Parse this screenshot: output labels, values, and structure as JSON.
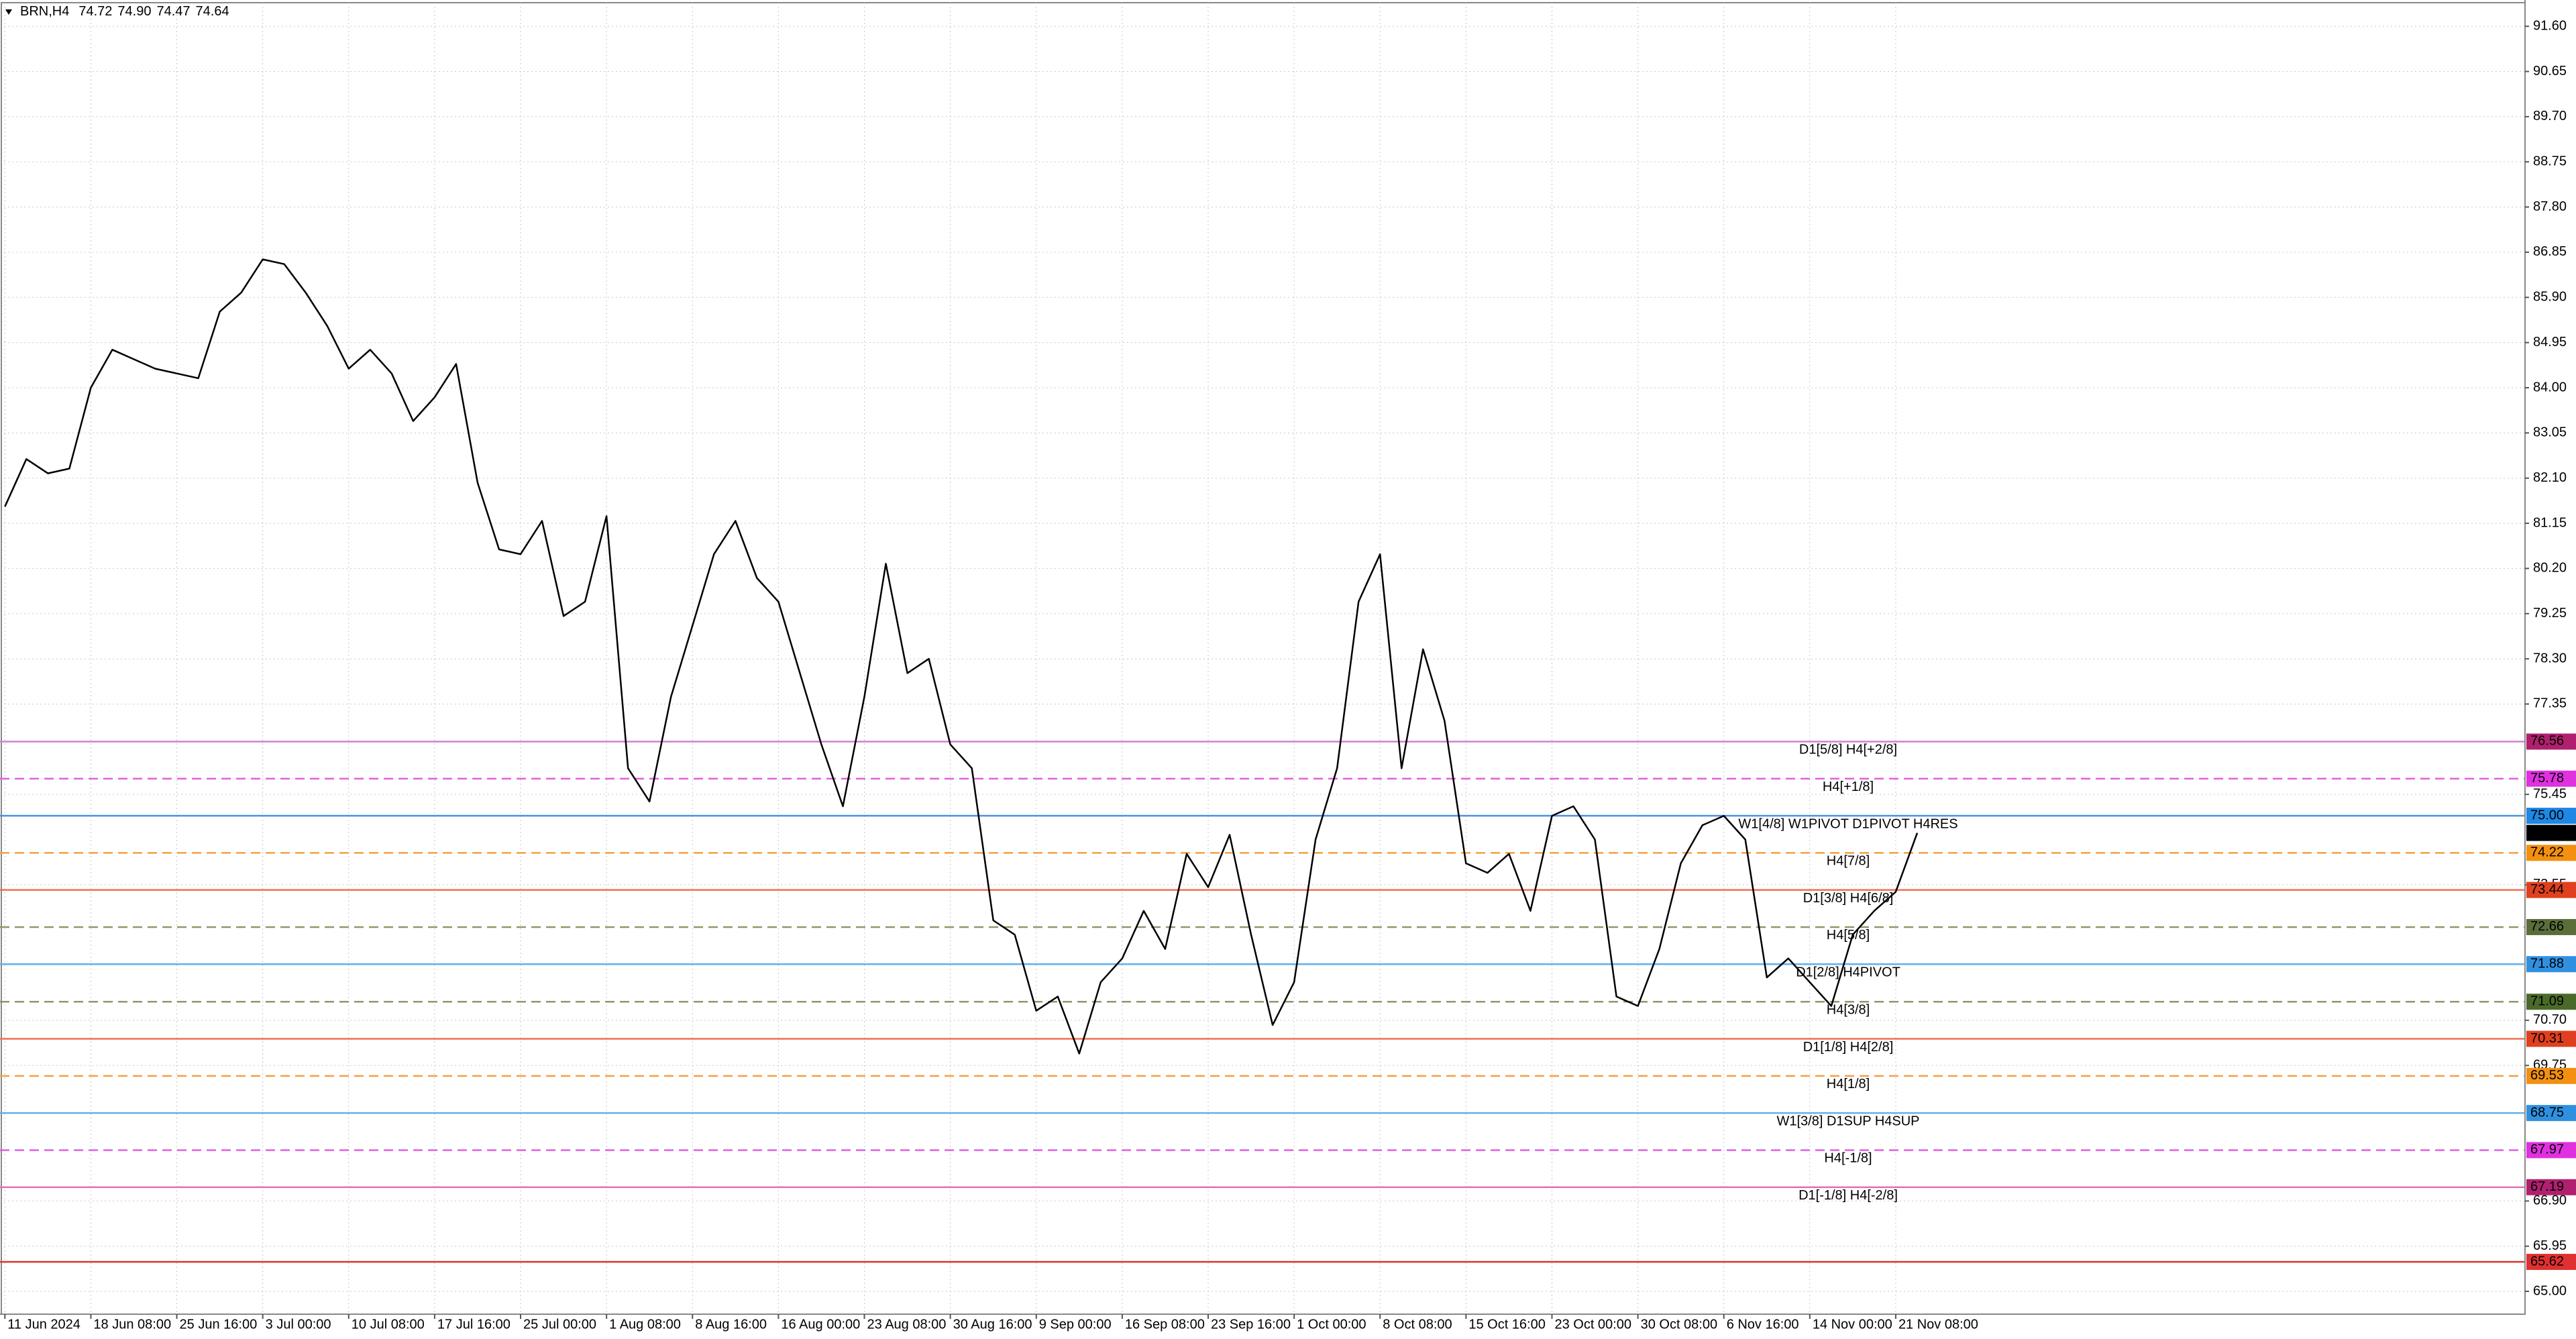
{
  "header": {
    "symbol": "BRN,H4",
    "ohlc": [
      "74.72",
      "74.90",
      "74.47",
      "74.64"
    ]
  },
  "chart_data": {
    "type": "line",
    "categories": [
      "11 Jun 2024",
      null,
      null,
      null,
      "18 Jun 08:00",
      null,
      null,
      null,
      "25 Jun 16:00",
      null,
      null,
      null,
      "3 Jul 00:00",
      null,
      null,
      null,
      "10 Jul 08:00",
      null,
      null,
      null,
      "17 Jul 16:00",
      null,
      null,
      null,
      "25 Jul 00:00",
      null,
      null,
      null,
      "1 Aug 08:00",
      null,
      null,
      null,
      "8 Aug 16:00",
      null,
      null,
      null,
      "16 Aug 00:00",
      null,
      null,
      null,
      "23 Aug 08:00",
      null,
      null,
      null,
      "30 Aug 16:00",
      null,
      null,
      null,
      "9 Sep 00:00",
      null,
      null,
      null,
      "16 Sep 08:00",
      null,
      null,
      null,
      "23 Sep 16:00",
      null,
      null,
      null,
      "1 Oct 00:00",
      null,
      null,
      null,
      "8 Oct 08:00",
      null,
      null,
      null,
      "15 Oct 16:00",
      null,
      null,
      null,
      "23 Oct 00:00",
      null,
      null,
      null,
      "30 Oct 08:00",
      null,
      null,
      null,
      "6 Nov 16:00",
      null,
      null,
      null,
      "14 Nov 00:00",
      null,
      null,
      null,
      "21 Nov 08:00",
      null
    ],
    "values": [
      81.5,
      82.5,
      82.2,
      82.3,
      84.0,
      84.8,
      84.6,
      84.4,
      84.3,
      84.2,
      85.6,
      86.0,
      86.7,
      86.6,
      86.0,
      85.3,
      84.4,
      84.8,
      84.3,
      83.3,
      83.8,
      84.5,
      82.0,
      80.6,
      80.5,
      81.2,
      79.2,
      79.5,
      81.3,
      76.0,
      75.3,
      77.5,
      79.0,
      80.5,
      81.2,
      80.0,
      79.5,
      78.0,
      76.5,
      75.2,
      77.5,
      80.3,
      78.0,
      78.3,
      76.5,
      76.0,
      72.8,
      72.5,
      70.9,
      71.2,
      70.0,
      71.5,
      72.0,
      73.0,
      72.2,
      74.2,
      73.5,
      74.6,
      72.5,
      70.6,
      71.5,
      74.5,
      76.0,
      79.5,
      80.5,
      76.0,
      78.5,
      77.0,
      74.0,
      73.8,
      74.2,
      73.0,
      75.0,
      75.2,
      74.5,
      71.2,
      71.0,
      72.2,
      74.0,
      74.8,
      75.0,
      74.5,
      71.6,
      72.0,
      71.5,
      71.0,
      72.5,
      73.0,
      73.4,
      74.64
    ],
    "color": "#000000",
    "ylim": [
      65.0,
      91.6
    ],
    "yticks": [
      {
        "value": 91.6,
        "label": "91.60"
      },
      {
        "value": 90.65,
        "label": "90.65"
      },
      {
        "value": 89.7,
        "label": "89.70"
      },
      {
        "value": 88.75,
        "label": "88.75"
      },
      {
        "value": 87.8,
        "label": "87.80"
      },
      {
        "value": 86.85,
        "label": "86.85"
      },
      {
        "value": 85.9,
        "label": "85.90"
      },
      {
        "value": 84.95,
        "label": "84.95"
      },
      {
        "value": 84.0,
        "label": "84.00"
      },
      {
        "value": 83.05,
        "label": "83.05"
      },
      {
        "value": 82.1,
        "label": "82.10"
      },
      {
        "value": 81.15,
        "label": "81.15"
      },
      {
        "value": 80.2,
        "label": "80.20"
      },
      {
        "value": 79.25,
        "label": "79.25"
      },
      {
        "value": 78.3,
        "label": "78.30"
      },
      {
        "value": 77.35,
        "label": "77.35"
      },
      {
        "value": 75.45,
        "label": "75.45"
      },
      {
        "value": 73.55,
        "label": "73.55"
      },
      {
        "value": 70.7,
        "label": "70.70"
      },
      {
        "value": 69.75,
        "label": "69.75"
      },
      {
        "value": 66.9,
        "label": "66.90"
      },
      {
        "value": 65.95,
        "label": "65.95"
      },
      {
        "value": 65.0,
        "label": "65.00"
      }
    ],
    "grid": true,
    "current_price": 74.64,
    "levels": [
      {
        "value": 76.56,
        "label": "D1[5/8] H4[+2/8]",
        "color": "#d080d0",
        "text_color": "#b0206e",
        "box_color": "#b0206e",
        "dashed": false
      },
      {
        "value": 75.78,
        "label": "H4[+1/8]",
        "color": "#e060e0",
        "text_color": "#e030e0",
        "box_color": "#e030e0",
        "dashed": true
      },
      {
        "value": 75.0,
        "price_label": "75.00",
        "label": "W1[4/8] W1PIVOT D1PIVOT H4RES",
        "color": "#4a90e2",
        "text_color": "#2a80d8",
        "box_color": "#1e88e5",
        "dashed": false
      },
      {
        "value": 74.22,
        "label": "H4[7/8]",
        "color": "#f5a040",
        "text_color": "#f08a10",
        "box_color": "#f39010",
        "dashed": true
      },
      {
        "value": 73.44,
        "label": "D1[3/8] H4[6/8]",
        "color": "#f07050",
        "text_color": "#e04020",
        "box_color": "#e04020",
        "dashed": false
      },
      {
        "value": 72.66,
        "label": "H4[5/8]",
        "color": "#8a9a6a",
        "text_color": "#5a6e2a",
        "box_color": "#5a6e3a",
        "dashed": true
      },
      {
        "value": 71.88,
        "label": "D1[2/8] H4PIVOT",
        "color": "#60b0f0",
        "text_color": "#3090e0",
        "box_color": "#3090e0",
        "dashed": false
      },
      {
        "value": 71.09,
        "label": "H4[3/8]",
        "color": "#8a9a6a",
        "text_color": "#5a6e2a",
        "box_color": "#4a6a2a",
        "dashed": true
      },
      {
        "value": 70.31,
        "label": "D1[1/8] H4[2/8]",
        "color": "#f07050",
        "text_color": "#e04020",
        "box_color": "#e04020",
        "dashed": false
      },
      {
        "value": 69.53,
        "label": "H4[1/8]",
        "color": "#f5a040",
        "text_color": "#f08a10",
        "box_color": "#f39010",
        "dashed": true
      },
      {
        "value": 68.75,
        "label": "W1[3/8] D1SUP H4SUP",
        "color": "#60b0f0",
        "text_color": "#3090e0",
        "box_color": "#3090e0",
        "dashed": false
      },
      {
        "value": 67.97,
        "label": "H4[-1/8]",
        "color": "#e060e0",
        "text_color": "#e030e0",
        "box_color": "#e030e0",
        "dashed": true
      },
      {
        "value": 67.19,
        "label": "D1[-1/8] H4[-2/8]",
        "color": "#e070c0",
        "text_color": "#b0206e",
        "box_color": "#b0206e",
        "dashed": false
      },
      {
        "value": 65.62,
        "color": "#e03030",
        "box_color": "#e03030",
        "dashed": false
      }
    ]
  }
}
